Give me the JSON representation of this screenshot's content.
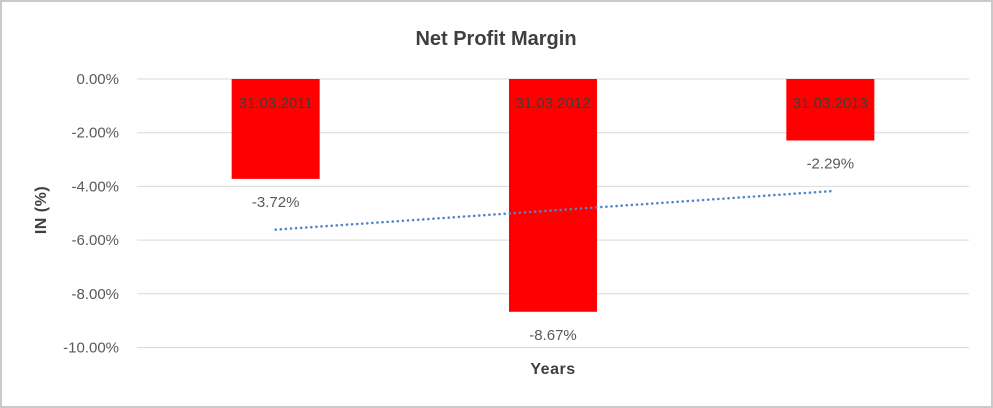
{
  "chart_data": {
    "type": "bar",
    "title": "Net Profit Margin",
    "xlabel": "Years",
    "ylabel": "IN (%)",
    "categories": [
      "31.03.2011",
      "31.03.2012",
      "31.03.2013"
    ],
    "values": [
      -3.72,
      -8.67,
      -2.29
    ],
    "value_labels": [
      "-3.72%",
      "-8.67%",
      "-2.29%"
    ],
    "ylim": [
      0,
      -10
    ],
    "y_ticks": [
      {
        "label": "0.00%",
        "value": 0
      },
      {
        "label": "-2.00%",
        "value": -2
      },
      {
        "label": "-4.00%",
        "value": -4
      },
      {
        "label": "-6.00%",
        "value": -6
      },
      {
        "label": "-8.00%",
        "value": -8
      },
      {
        "label": "-10.00%",
        "value": -10
      }
    ],
    "grid": true,
    "legend": "none",
    "colors": {
      "bar": "#ff0000",
      "gridline": "#d9d9d9",
      "category_label": "#3d3d3d",
      "value_label": "#595959",
      "titles": "#3f3f3f"
    },
    "trendline": {
      "type": "linear",
      "style": "dotted",
      "color": "#4e86c6",
      "start_value": -5.61,
      "end_value": -4.18
    }
  }
}
